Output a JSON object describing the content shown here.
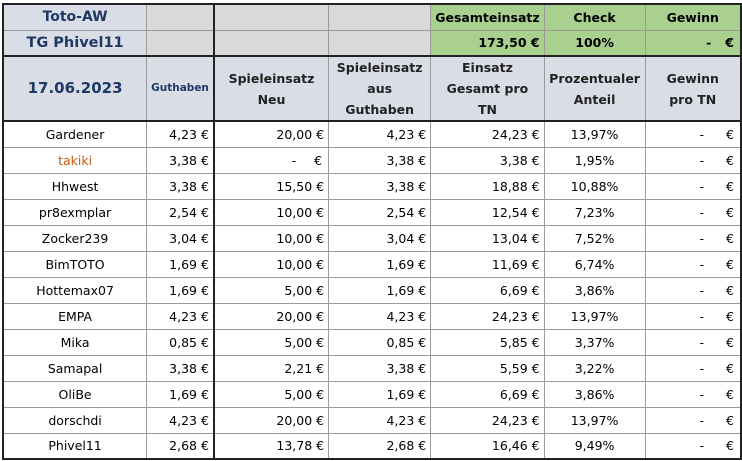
{
  "header": {
    "title": "Toto-AW",
    "subtitle": "TG Phivel11",
    "totals_labels": {
      "gesamteinsatz": "Gesamteinsatz",
      "check": "Check",
      "gewinn": "Gewinn"
    },
    "totals_values": {
      "gesamteinsatz": "173,50 €",
      "check": "100%",
      "gewinn_dash": "-",
      "gewinn_eur": "€"
    }
  },
  "columns": {
    "date": "17.06.2023",
    "guthaben": "Guthaben",
    "spieleinsatz_neu_1": "Spieleinsatz",
    "spieleinsatz_neu_2": "Neu",
    "spieleinsatz_aus_1": "Spieleinsatz",
    "spieleinsatz_aus_2": "aus Guthaben",
    "einsatz_1": "Einsatz",
    "einsatz_2": "Gesamt pro TN",
    "anteil_1": "Prozentualer",
    "anteil_2": "Anteil",
    "gewinn_1": "Gewinn",
    "gewinn_2": "pro TN"
  },
  "rows": [
    {
      "name": "Gardener",
      "guthaben": "4,23 €",
      "neu": "20,00 €",
      "aus": "4,23 €",
      "gesamt": "24,23 €",
      "anteil": "13,97%",
      "gewinn_dash": "-",
      "gewinn_eur": "€"
    },
    {
      "name": "takiki",
      "guthaben": "3,38 €",
      "neu_dash": "-",
      "neu_eur": "€",
      "aus": "3,38 €",
      "gesamt": "3,38 €",
      "anteil": "1,95%",
      "gewinn_dash": "-",
      "gewinn_eur": "€"
    },
    {
      "name": "Hhwest",
      "guthaben": "3,38 €",
      "neu": "15,50 €",
      "aus": "3,38 €",
      "gesamt": "18,88 €",
      "anteil": "10,88%",
      "gewinn_dash": "-",
      "gewinn_eur": "€"
    },
    {
      "name": "pr8exmplar",
      "guthaben": "2,54 €",
      "neu": "10,00 €",
      "aus": "2,54 €",
      "gesamt": "12,54 €",
      "anteil": "7,23%",
      "gewinn_dash": "-",
      "gewinn_eur": "€"
    },
    {
      "name": "Zocker239",
      "guthaben": "3,04 €",
      "neu": "10,00 €",
      "aus": "3,04 €",
      "gesamt": "13,04 €",
      "anteil": "7,52%",
      "gewinn_dash": "-",
      "gewinn_eur": "€"
    },
    {
      "name": "BimTOTO",
      "guthaben": "1,69 €",
      "neu": "10,00 €",
      "aus": "1,69 €",
      "gesamt": "11,69 €",
      "anteil": "6,74%",
      "gewinn_dash": "-",
      "gewinn_eur": "€"
    },
    {
      "name": "Hottemax07",
      "guthaben": "1,69 €",
      "neu": "5,00 €",
      "aus": "1,69 €",
      "gesamt": "6,69 €",
      "anteil": "3,86%",
      "gewinn_dash": "-",
      "gewinn_eur": "€"
    },
    {
      "name": "EMPA",
      "guthaben": "4,23 €",
      "neu": "20,00 €",
      "aus": "4,23 €",
      "gesamt": "24,23 €",
      "anteil": "13,97%",
      "gewinn_dash": "-",
      "gewinn_eur": "€"
    },
    {
      "name": "Mika",
      "guthaben": "0,85 €",
      "neu": "5,00 €",
      "aus": "0,85 €",
      "gesamt": "5,85 €",
      "anteil": "3,37%",
      "gewinn_dash": "-",
      "gewinn_eur": "€"
    },
    {
      "name": "Samapal",
      "guthaben": "3,38 €",
      "neu": "2,21 €",
      "aus": "3,38 €",
      "gesamt": "5,59 €",
      "anteil": "3,22%",
      "gewinn_dash": "-",
      "gewinn_eur": "€"
    },
    {
      "name": "OliBe",
      "guthaben": "1,69 €",
      "neu": "5,00 €",
      "aus": "1,69 €",
      "gesamt": "6,69 €",
      "anteil": "3,86%",
      "gewinn_dash": "-",
      "gewinn_eur": "€"
    },
    {
      "name": "dorschdi",
      "guthaben": "4,23 €",
      "neu": "20,00 €",
      "aus": "4,23 €",
      "gesamt": "24,23 €",
      "anteil": "13,97%",
      "gewinn_dash": "-",
      "gewinn_eur": "€"
    },
    {
      "name": "Phivel11",
      "guthaben": "2,68 €",
      "neu": "13,78 €",
      "aus": "2,68 €",
      "gesamt": "16,46 €",
      "anteil": "9,49%",
      "gewinn_dash": "-",
      "gewinn_eur": "€"
    }
  ],
  "colors": {
    "header_bg": "#d9dde6",
    "header_text": "#1f3864",
    "green": "#a9d08e",
    "grey": "#d9d9d9",
    "orange_name": "#c55a11"
  }
}
